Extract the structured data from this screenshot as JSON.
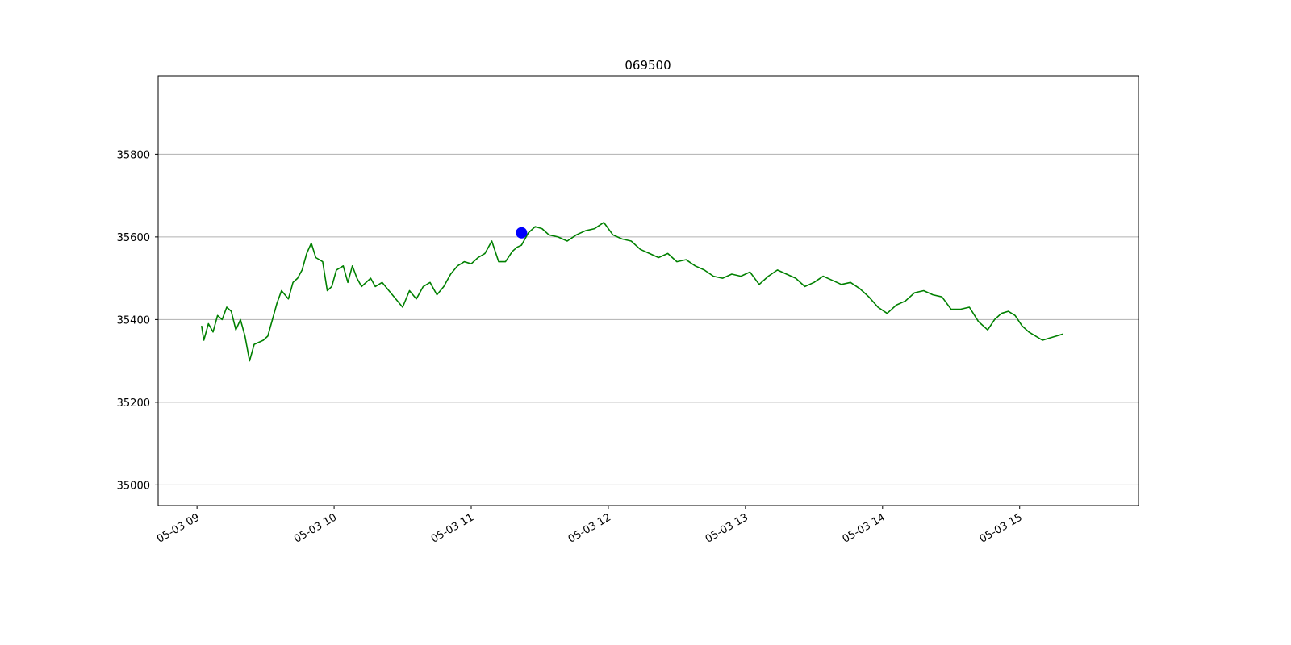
{
  "chart_data": {
    "type": "line",
    "title": "069500",
    "xlabel": "",
    "ylabel": "",
    "x_ticks": [
      "05-03 09",
      "05-03 10",
      "05-03 11",
      "05-03 12",
      "05-03 13",
      "05-03 14",
      "05-03 15"
    ],
    "y_ticks": [
      "35000",
      "35200",
      "35400",
      "35600",
      "35800"
    ],
    "ylim": [
      34950,
      35990
    ],
    "xlim": [
      "05-03 08:43",
      "05-03 15:52"
    ],
    "grid": "horizontal",
    "series": [
      {
        "color": "#008000",
        "x": [
          "05-03 09:02",
          "05-03 09:03",
          "05-03 09:05",
          "05-03 09:07",
          "05-03 09:09",
          "05-03 09:11",
          "05-03 09:13",
          "05-03 09:15",
          "05-03 09:17",
          "05-03 09:19",
          "05-03 09:21",
          "05-03 09:23",
          "05-03 09:25",
          "05-03 09:27",
          "05-03 09:29",
          "05-03 09:31",
          "05-03 09:33",
          "05-03 09:35",
          "05-03 09:37",
          "05-03 09:40",
          "05-03 09:42",
          "05-03 09:44",
          "05-03 09:46",
          "05-03 09:48",
          "05-03 09:50",
          "05-03 09:52",
          "05-03 09:55",
          "05-03 09:57",
          "05-03 09:59",
          "05-03 10:01",
          "05-03 10:04",
          "05-03 10:06",
          "05-03 10:08",
          "05-03 10:10",
          "05-03 10:12",
          "05-03 10:14",
          "05-03 10:16",
          "05-03 10:18",
          "05-03 10:21",
          "05-03 10:24",
          "05-03 10:27",
          "05-03 10:30",
          "05-03 10:33",
          "05-03 10:36",
          "05-03 10:39",
          "05-03 10:42",
          "05-03 10:45",
          "05-03 10:48",
          "05-03 10:51",
          "05-03 10:54",
          "05-03 10:57",
          "05-03 11:00",
          "05-03 11:03",
          "05-03 11:06",
          "05-03 11:09",
          "05-03 11:12",
          "05-03 11:15",
          "05-03 11:18",
          "05-03 11:20",
          "05-03 11:22",
          "05-03 11:25",
          "05-03 11:28",
          "05-03 11:31",
          "05-03 11:34",
          "05-03 11:38",
          "05-03 11:42",
          "05-03 11:46",
          "05-03 11:50",
          "05-03 11:54",
          "05-03 11:58",
          "05-03 12:02",
          "05-03 12:06",
          "05-03 12:10",
          "05-03 12:14",
          "05-03 12:18",
          "05-03 12:22",
          "05-03 12:26",
          "05-03 12:30",
          "05-03 12:34",
          "05-03 12:38",
          "05-03 12:42",
          "05-03 12:46",
          "05-03 12:50",
          "05-03 12:54",
          "05-03 12:58",
          "05-03 13:02",
          "05-03 13:06",
          "05-03 13:10",
          "05-03 13:14",
          "05-03 13:18",
          "05-03 13:22",
          "05-03 13:26",
          "05-03 13:30",
          "05-03 13:34",
          "05-03 13:38",
          "05-03 13:42",
          "05-03 13:46",
          "05-03 13:50",
          "05-03 13:54",
          "05-03 13:58",
          "05-03 14:02",
          "05-03 14:06",
          "05-03 14:10",
          "05-03 14:14",
          "05-03 14:18",
          "05-03 14:22",
          "05-03 14:26",
          "05-03 14:30",
          "05-03 14:34",
          "05-03 14:38",
          "05-03 14:42",
          "05-03 14:46",
          "05-03 14:49",
          "05-03 14:52",
          "05-03 14:55",
          "05-03 14:58",
          "05-03 15:01",
          "05-03 15:04",
          "05-03 15:07",
          "05-03 15:10",
          "05-03 15:13",
          "05-03 15:16",
          "05-03 15:19"
        ],
        "values": [
          35385,
          35350,
          35390,
          35370,
          35410,
          35400,
          35430,
          35420,
          35375,
          35400,
          35360,
          35300,
          35340,
          35345,
          35350,
          35360,
          35400,
          35440,
          35470,
          35450,
          35490,
          35500,
          35520,
          35560,
          35585,
          35550,
          35540,
          35470,
          35480,
          35520,
          35530,
          35490,
          35530,
          35500,
          35480,
          35490,
          35500,
          35480,
          35490,
          35470,
          35450,
          35430,
          35470,
          35450,
          35480,
          35490,
          35460,
          35480,
          35510,
          35530,
          35540,
          35535,
          35550,
          35560,
          35590,
          35540,
          35540,
          35565,
          35575,
          35580,
          35610,
          35625,
          35620,
          35605,
          35600,
          35590,
          35605,
          35615,
          35620,
          35635,
          35605,
          35595,
          35590,
          35570,
          35560,
          35550,
          35560,
          35540,
          35545,
          35530,
          35520,
          35505,
          35500,
          35510,
          35505,
          35515,
          35485,
          35505,
          35520,
          35510,
          35500,
          35480,
          35490,
          35505,
          35495,
          35485,
          35490,
          35475,
          35455,
          35430,
          35415,
          35435,
          35445,
          35465,
          35470,
          35460,
          35455,
          35425,
          35425,
          35430,
          35395,
          35375,
          35400,
          35415,
          35420,
          35410,
          35385,
          35370,
          35360,
          35350,
          35355,
          35360,
          35365
        ]
      }
    ],
    "markers": [
      {
        "x": "05-03 11:22",
        "y": 35610,
        "color": "#0000ff"
      }
    ]
  }
}
